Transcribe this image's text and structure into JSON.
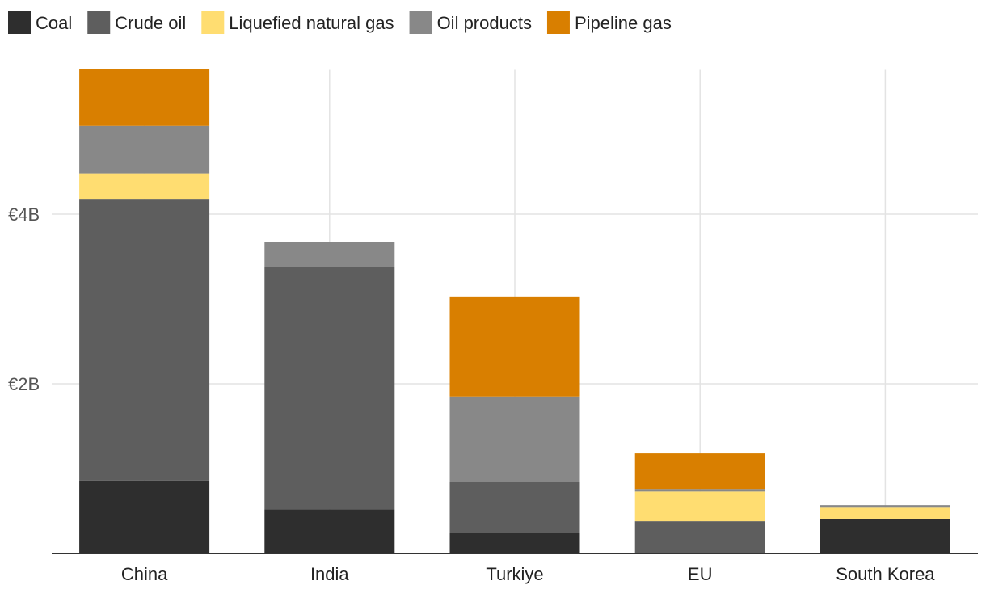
{
  "chart_data": {
    "type": "bar",
    "stacked": true,
    "categories": [
      "China",
      "India",
      "Turkiye",
      "EU",
      "South Korea"
    ],
    "y_ticks": [
      {
        "value": 2,
        "label": "€2B"
      },
      {
        "value": 4,
        "label": "€4B"
      }
    ],
    "ylim": [
      0,
      5.7
    ],
    "grid": true,
    "legend_position": "top-left",
    "series": [
      {
        "name": "Coal",
        "color": "#2e2e2e",
        "values": [
          0.86,
          0.52,
          0.24,
          0.0,
          0.41
        ]
      },
      {
        "name": "Crude oil",
        "color": "#5e5e5e",
        "values": [
          3.32,
          2.86,
          0.6,
          0.38,
          0.0
        ]
      },
      {
        "name": "Liquefied natural gas",
        "color": "#ffdd71",
        "values": [
          0.3,
          0.0,
          0.0,
          0.35,
          0.13
        ]
      },
      {
        "name": "Oil products",
        "color": "#888888",
        "values": [
          0.56,
          0.29,
          1.01,
          0.03,
          0.03
        ]
      },
      {
        "name": "Pipeline gas",
        "color": "#d97f00",
        "values": [
          0.67,
          0.0,
          1.18,
          0.42,
          0.0
        ]
      }
    ]
  }
}
